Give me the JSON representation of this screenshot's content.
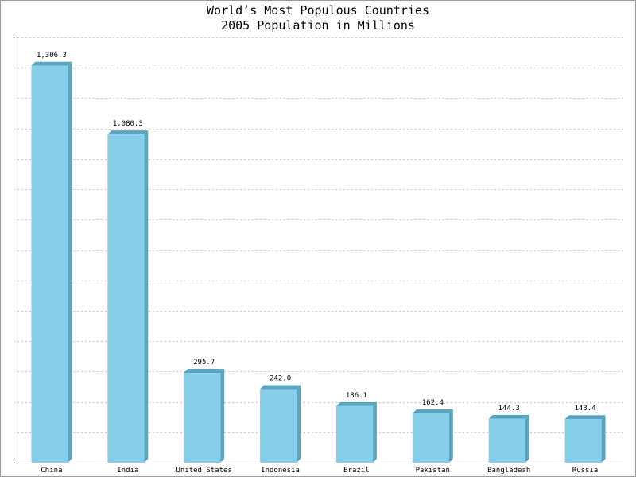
{
  "chart_data": {
    "type": "bar",
    "title": "World’s Most Populous Countries",
    "subtitle": "2005 Population in Millions",
    "categories": [
      "China",
      "India",
      "United States",
      "Indonesia",
      "Brazil",
      "Pakistan",
      "Bangladesh",
      "Russia"
    ],
    "values": [
      1306.3,
      1080.3,
      295.7,
      242.0,
      186.1,
      162.4,
      144.3,
      143.4
    ],
    "value_labels": [
      "1,306.3",
      "1,080.3",
      "295.7",
      "242.0",
      "186.1",
      "162.4",
      "144.3",
      "143.4"
    ],
    "ylim": [
      0,
      1400
    ],
    "grid": true,
    "colors": {
      "bar_front": "#87ceeb",
      "bar_side": "#5aa6c0",
      "grid": "#c8c8c8",
      "axis": "#000000"
    }
  }
}
